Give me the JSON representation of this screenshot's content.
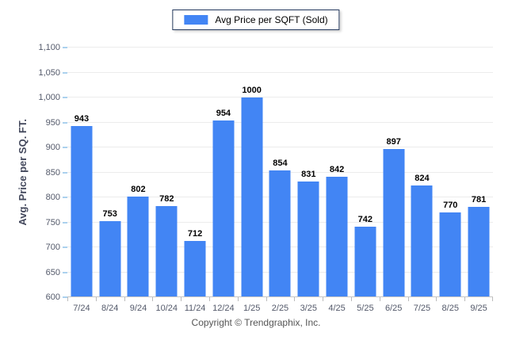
{
  "legend": {
    "swatch_color": "#4285f4"
  },
  "footer": {
    "copyright": "Copyright © Trendgraphix, Inc."
  },
  "colors": {
    "bar": "#4285f4",
    "gridline": "#ececec",
    "axis_line": "#c6c6c6",
    "y_tick_mark": "#abd1ee",
    "tick_label": "#53596a",
    "value_label": "#000000",
    "legend_border": "#24395e"
  },
  "chart_data": {
    "type": "bar",
    "title": "",
    "categories": [
      "7/24",
      "8/24",
      "9/24",
      "10/24",
      "11/24",
      "12/24",
      "1/25",
      "2/25",
      "3/25",
      "4/25",
      "5/25",
      "6/25",
      "7/25",
      "8/25",
      "9/25"
    ],
    "series": [
      {
        "name": "Avg Price per SQFT (Sold)",
        "values": [
          943,
          753,
          802,
          782,
          712,
          954,
          1000,
          854,
          831,
          842,
          742,
          897,
          824,
          770,
          781
        ]
      }
    ],
    "xlabel": "",
    "ylabel": "Avg. Price per SQ. FT.",
    "ylim": [
      600,
      1100
    ],
    "ytick_step": 50,
    "grid": true,
    "legend_position": "top-center"
  }
}
